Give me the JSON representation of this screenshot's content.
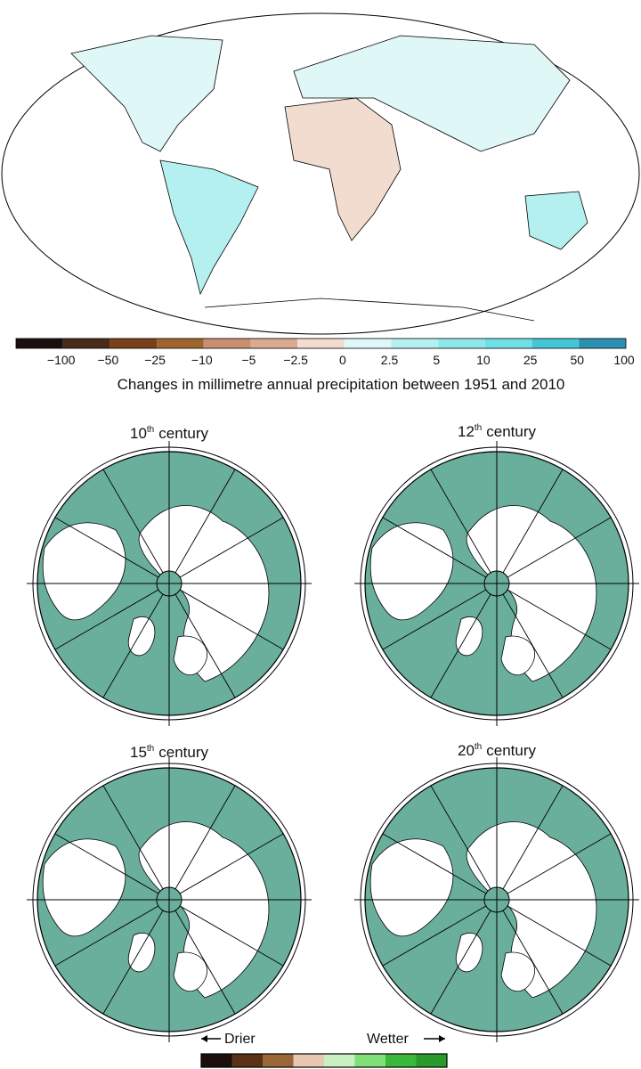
{
  "top_map": {
    "colorbar": {
      "ticks": [
        "−100",
        "−50",
        "−25",
        "−10",
        "−5",
        "−2.5",
        "0",
        "2.5",
        "5",
        "10",
        "25",
        "50",
        "100"
      ],
      "colors": [
        "#1a1010",
        "#4a2a1a",
        "#7a3f1a",
        "#a0642e",
        "#c89070",
        "#d9aa90",
        "#f2dcd0",
        "#dff7f7",
        "#b5f0f0",
        "#8ee8ea",
        "#6fe0e6",
        "#45c5d5",
        "#2a8fb0"
      ]
    },
    "caption": "Changes in millimetre annual precipitation between 1951 and 2010"
  },
  "panels": [
    {
      "number": "10",
      "suffix": "th",
      "text": "century"
    },
    {
      "number": "12",
      "suffix": "th",
      "text": "century"
    },
    {
      "number": "15",
      "suffix": "th",
      "text": "century"
    },
    {
      "number": "20",
      "suffix": "th",
      "text": "century"
    }
  ],
  "bottom_legend": {
    "left": "Drier",
    "right": "Wetter",
    "colors": [
      "#1a0f0a",
      "#5a3218",
      "#9a6838",
      "#e8c8b0",
      "#c8f0c0",
      "#7fe07a",
      "#3ab83a",
      "#2a9a2a"
    ]
  }
}
